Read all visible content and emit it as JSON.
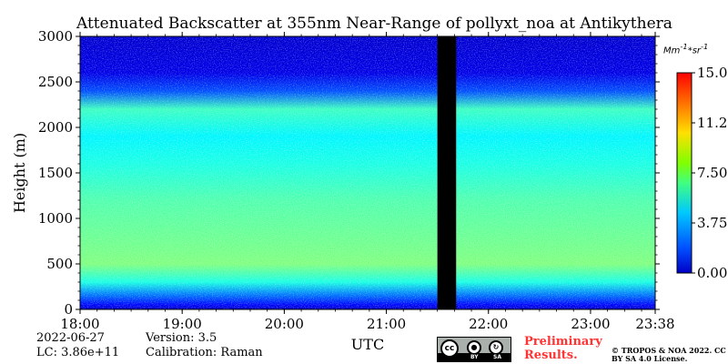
{
  "chart_data": {
    "type": "heatmap",
    "title": "Attenuated Backscatter at 355nm Near-Range of pollyxt_noa at Antikythera",
    "xlabel": "UTC",
    "ylabel": "Height (m)",
    "x_range": [
      "18:00",
      "23:38"
    ],
    "x_ticks": [
      "18:00",
      "19:00",
      "20:00",
      "21:00",
      "22:00",
      "23:00",
      "23:38"
    ],
    "y_range": [
      0,
      3000
    ],
    "y_ticks": [
      "0",
      "500",
      "1000",
      "1500",
      "2000",
      "2500",
      "3000"
    ],
    "colorbar": {
      "unit_html": "Mm<sup>-1</sup>*sr<sup>-1</sup>",
      "range": [
        0,
        15
      ],
      "tick_labels": [
        "0.00",
        "3.75",
        "7.50",
        "11.25",
        "15.00"
      ],
      "colormap": "jet"
    },
    "data_gap": {
      "start": "21:30",
      "end": "21:41"
    },
    "profile": [
      {
        "height": 0,
        "value": 1.0
      },
      {
        "height": 50,
        "value": 2.0
      },
      {
        "height": 150,
        "value": 3.5
      },
      {
        "height": 300,
        "value": 6.0
      },
      {
        "height": 500,
        "value": 7.5
      },
      {
        "height": 800,
        "value": 7.2
      },
      {
        "height": 1200,
        "value": 6.8
      },
      {
        "height": 1600,
        "value": 6.0
      },
      {
        "height": 1900,
        "value": 5.5
      },
      {
        "height": 2200,
        "value": 6.5
      },
      {
        "height": 2400,
        "value": 3.0
      },
      {
        "height": 2600,
        "value": 1.5
      },
      {
        "height": 3000,
        "value": 1.2
      }
    ]
  },
  "footer": {
    "date": "2022-06-27",
    "lc": "LC: 3.86e+11",
    "version": "Version: 3.5",
    "calibration": "Calibration: Raman",
    "preliminary": "Preliminary Results.",
    "copyright": "© TROPOS & NOA 2022. CC BY SA 4.0 License.",
    "license_badge": {
      "by": "BY",
      "sa": "SA"
    }
  }
}
